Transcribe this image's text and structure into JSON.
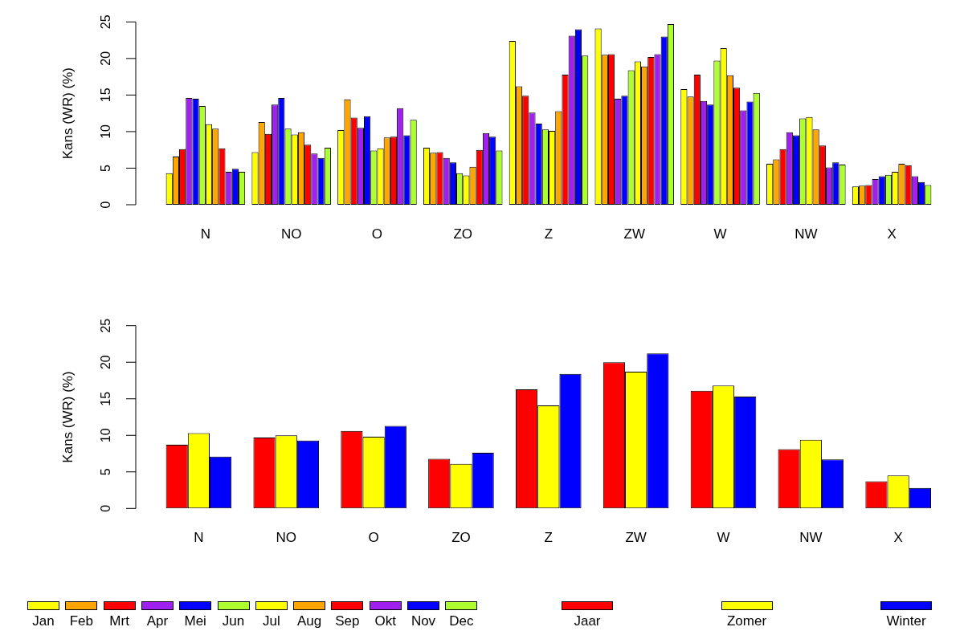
{
  "chart_data": [
    {
      "type": "bar",
      "ylabel": "Kans (WR) (%)",
      "categories": [
        "N",
        "NO",
        "O",
        "ZO",
        "Z",
        "ZW",
        "W",
        "NW",
        "X"
      ],
      "ylim": [
        0,
        25
      ],
      "yticks": [
        0,
        5,
        10,
        15,
        20,
        25
      ],
      "legend": "bottom",
      "series": [
        {
          "name": "Jan",
          "color": "#ffff00",
          "values": [
            4.3,
            7.2,
            10.2,
            7.8,
            22.4,
            24.1,
            15.8,
            5.6,
            2.5
          ]
        },
        {
          "name": "Feb",
          "color": "#ffa500",
          "values": [
            6.6,
            11.3,
            14.4,
            7.1,
            16.2,
            20.5,
            14.8,
            6.2,
            2.6
          ]
        },
        {
          "name": "Mrt",
          "color": "#ff0000",
          "values": [
            7.6,
            9.7,
            11.9,
            7.2,
            14.9,
            20.6,
            17.8,
            7.6,
            2.7
          ]
        },
        {
          "name": "Apr",
          "color": "#a020f0",
          "values": [
            14.6,
            13.7,
            10.5,
            6.4,
            12.6,
            14.5,
            14.2,
            9.9,
            3.5
          ]
        },
        {
          "name": "Mei",
          "color": "#0000ff",
          "values": [
            14.5,
            14.6,
            12.1,
            5.8,
            11.1,
            14.9,
            13.7,
            9.5,
            3.9
          ]
        },
        {
          "name": "Jun",
          "color": "#adff2f",
          "values": [
            13.5,
            10.4,
            7.4,
            4.3,
            10.3,
            18.4,
            19.7,
            11.8,
            4.1
          ]
        },
        {
          "name": "Jul",
          "color": "#ffff00",
          "values": [
            11.0,
            9.6,
            7.7,
            4.0,
            10.1,
            19.6,
            21.4,
            12.0,
            4.5
          ]
        },
        {
          "name": "Aug",
          "color": "#ffa500",
          "values": [
            10.4,
            9.9,
            9.2,
            5.2,
            12.8,
            18.9,
            17.7,
            10.3,
            5.6
          ]
        },
        {
          "name": "Sep",
          "color": "#ff0000",
          "values": [
            7.7,
            8.2,
            9.3,
            7.5,
            17.8,
            20.2,
            16.0,
            8.1,
            5.4
          ]
        },
        {
          "name": "Okt",
          "color": "#a020f0",
          "values": [
            4.5,
            7.0,
            13.2,
            9.8,
            23.1,
            20.6,
            12.9,
            5.1,
            3.9
          ]
        },
        {
          "name": "Nov",
          "color": "#0000ff",
          "values": [
            4.9,
            6.4,
            9.5,
            9.3,
            24.0,
            23.0,
            14.1,
            5.8,
            3.1
          ]
        },
        {
          "name": "Dec",
          "color": "#adff2f",
          "values": [
            4.5,
            7.8,
            11.6,
            7.4,
            20.4,
            24.7,
            15.3,
            5.5,
            2.7
          ]
        }
      ]
    },
    {
      "type": "bar",
      "ylabel": "Kans (WR) (%)",
      "categories": [
        "N",
        "NO",
        "O",
        "ZO",
        "Z",
        "ZW",
        "W",
        "NW",
        "X"
      ],
      "ylim": [
        0,
        25
      ],
      "yticks": [
        0,
        5,
        10,
        15,
        20,
        25
      ],
      "legend": "bottom",
      "series": [
        {
          "name": "Jaar",
          "color": "#ff0000",
          "values": [
            8.7,
            9.7,
            10.6,
            6.8,
            16.3,
            20.0,
            16.1,
            8.1,
            3.7
          ]
        },
        {
          "name": "Zomer",
          "color": "#ffff00",
          "values": [
            10.3,
            10.0,
            9.8,
            6.1,
            14.1,
            18.7,
            16.8,
            9.4,
            4.5
          ]
        },
        {
          "name": "Winter",
          "color": "#0000ff",
          "values": [
            7.1,
            9.3,
            11.3,
            7.6,
            18.4,
            21.2,
            15.3,
            6.7,
            2.8
          ]
        }
      ]
    }
  ]
}
